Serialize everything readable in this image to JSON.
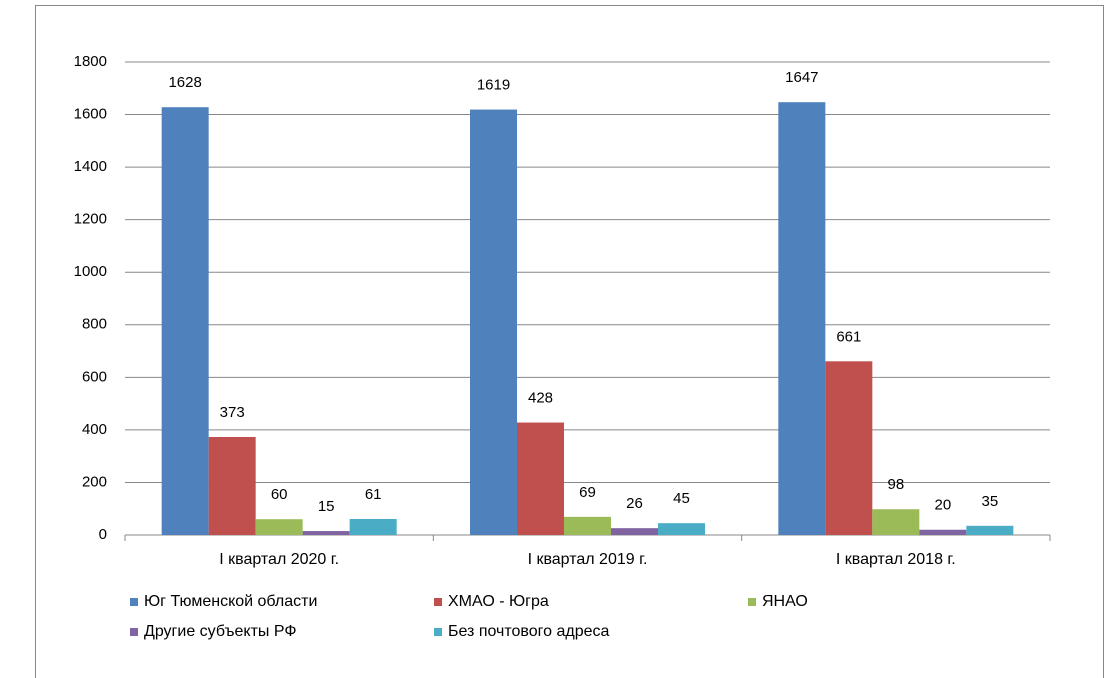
{
  "chart_data": {
    "type": "bar",
    "categories": [
      "I квартал 2020 г.",
      "I квартал 2019 г.",
      "I квартал 2018 г."
    ],
    "series": [
      {
        "name": "Юг Тюменской области",
        "color": "#4f81bd",
        "values": [
          1628,
          1619,
          1647
        ]
      },
      {
        "name": "ХМАО - Югра",
        "color": "#c0504d",
        "values": [
          373,
          428,
          661
        ]
      },
      {
        "name": "ЯНАО",
        "color": "#9bbb59",
        "values": [
          60,
          69,
          98
        ]
      },
      {
        "name": "Другие субъекты РФ",
        "color": "#8064a2",
        "values": [
          15,
          26,
          20
        ]
      },
      {
        "name": "Без почтового адреса",
        "color": "#4bacc6",
        "values": [
          61,
          45,
          35
        ]
      }
    ],
    "ylim": [
      0,
      1800
    ],
    "yticks": [
      0,
      200,
      400,
      600,
      800,
      1000,
      1200,
      1400,
      1600,
      1800
    ],
    "grid": true,
    "legend": "bottom"
  }
}
